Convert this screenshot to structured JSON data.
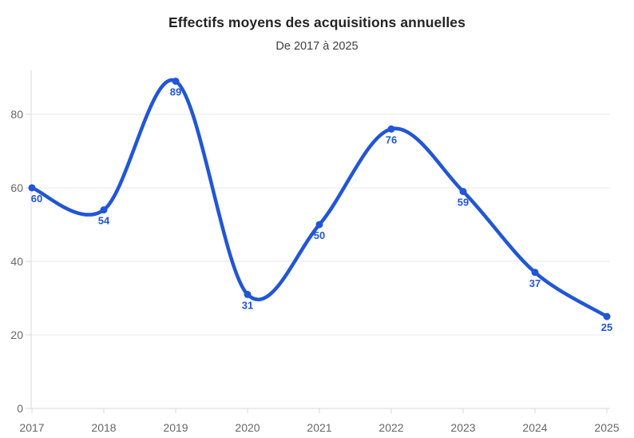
{
  "header": {
    "title": "Effectifs moyens des acquisitions annuelles",
    "subtitle": "De 2017 à 2025"
  },
  "chart_data": {
    "type": "line",
    "title": "Effectifs moyens des acquisitions annuelles",
    "subtitle": "De 2017 à 2025",
    "categories": [
      "2017",
      "2018",
      "2019",
      "2020",
      "2021",
      "2022",
      "2023",
      "2024",
      "2025"
    ],
    "values": [
      60,
      54,
      89,
      31,
      50,
      76,
      59,
      37,
      25
    ],
    "point_labels": [
      "60",
      "54",
      "89",
      "31",
      "50",
      "76",
      "59",
      "37",
      "25"
    ],
    "xlabel": "",
    "ylabel": "",
    "ylim": [
      0,
      91.3
    ],
    "yticks": [
      0,
      20,
      40,
      60,
      80
    ],
    "grid": true,
    "legend": "none",
    "smooth": true,
    "markers": true,
    "colors": {
      "line": "#2156d6",
      "marker": "#2156d6",
      "point_label": "#2156d6",
      "title": "#242424",
      "subtitle": "#3f3f3f",
      "axis_text": "#666666",
      "grid_line": "#eaeaea",
      "axis_line": "#d9d9d9"
    }
  }
}
